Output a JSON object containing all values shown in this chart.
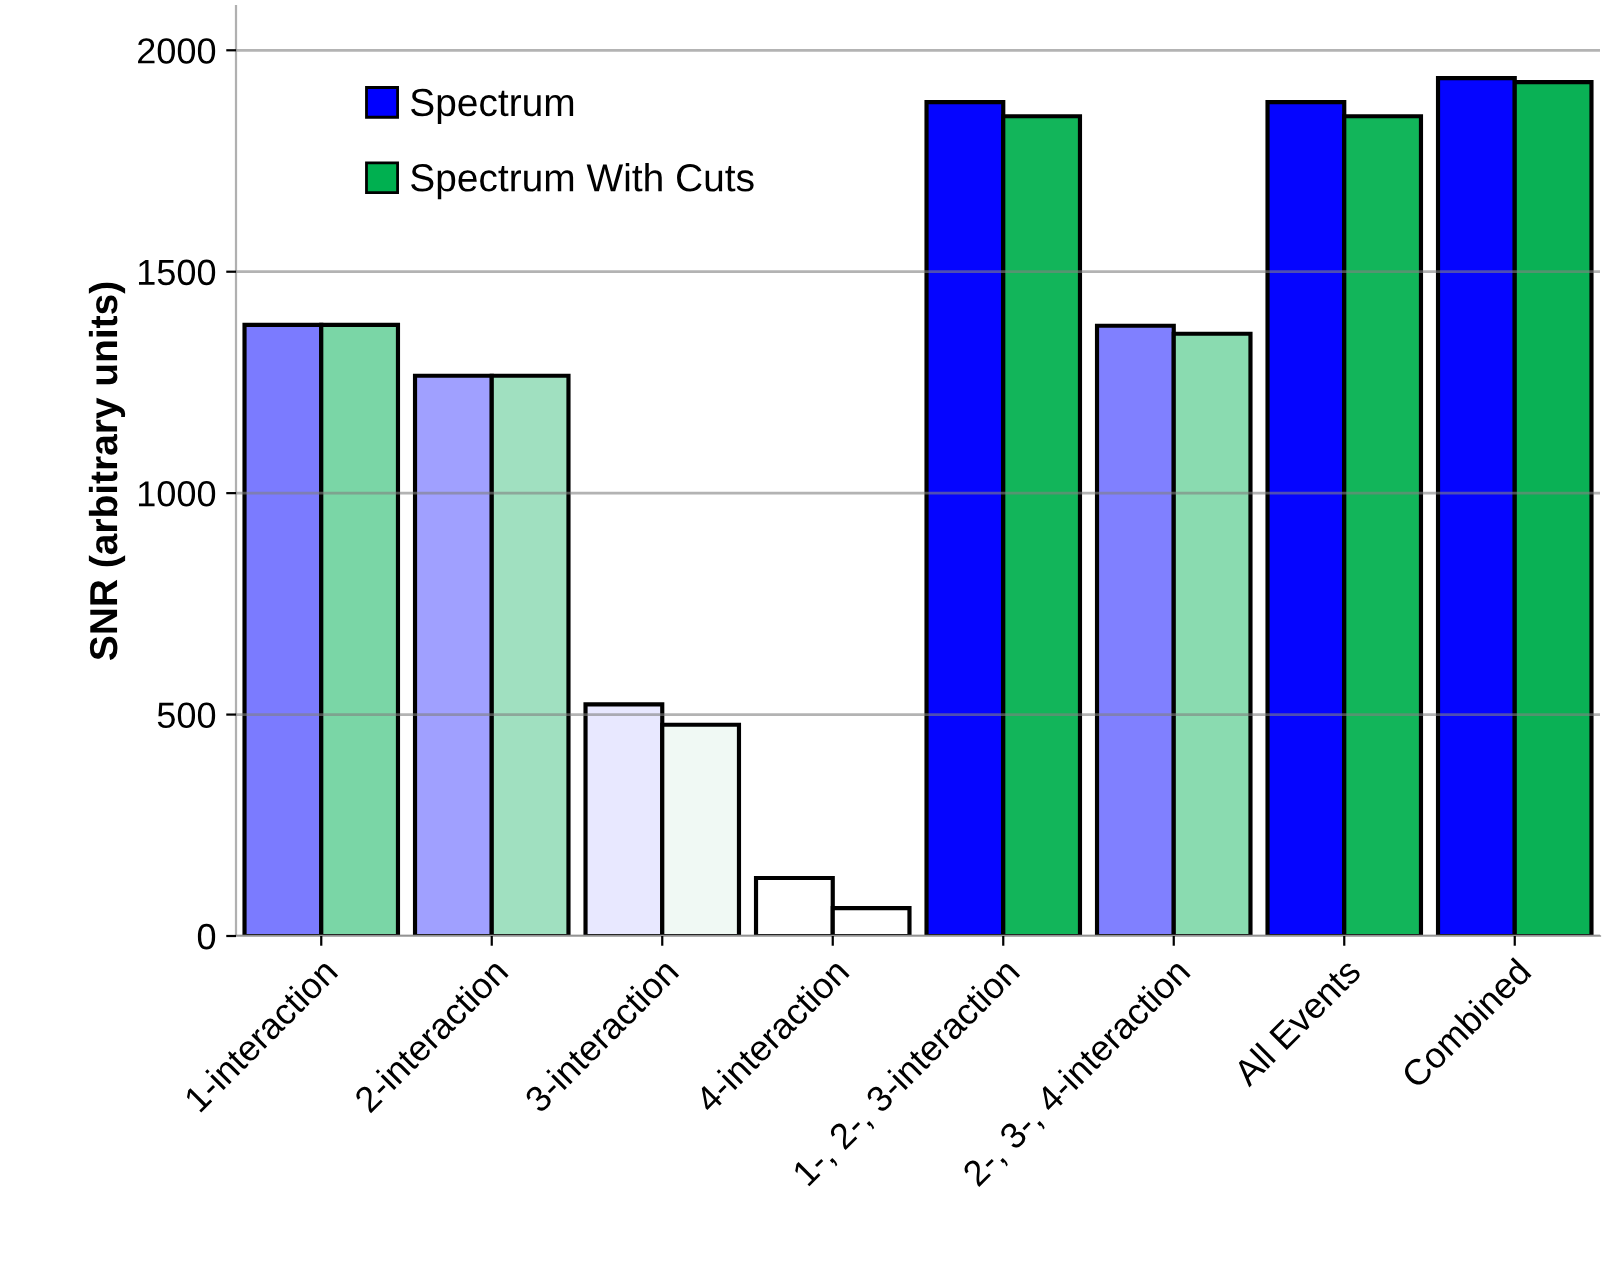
{
  "chart_data": {
    "type": "bar",
    "ylabel": "SNR (arbitrary units)",
    "categories": [
      "1-interaction",
      "2-interaction",
      "3-interaction",
      "4-interaction",
      "1-, 2-, 3-interaction",
      "2-, 3-, 4-interaction",
      "All Events",
      "Combined"
    ],
    "series": [
      {
        "name": "Spectrum",
        "color": "#0000ff",
        "colors": [
          "#7b7bff",
          "#a0a0ff",
          "#e8e8ff",
          "#ffffff",
          "#0505ff",
          "#8080ff",
          "#0505ff",
          "#0505ff"
        ],
        "values": [
          1380,
          1265,
          523,
          131,
          1883,
          1378,
          1883,
          1937
        ]
      },
      {
        "name": "Spectrum With Cuts",
        "color": "#00b050",
        "colors": [
          "#7ad6a6",
          "#a0e0c0",
          "#f0f9f4",
          "#ffffff",
          "#12b55a",
          "#8adbb0",
          "#12b55a",
          "#0ab155"
        ],
        "values": [
          1380,
          1265,
          477,
          63,
          1851,
          1360,
          1851,
          1928
        ]
      }
    ],
    "ylim": [
      0,
      2100
    ],
    "yticks": [
      0,
      500,
      1000,
      1500,
      2000
    ],
    "grid": "y",
    "legend": "top left"
  }
}
